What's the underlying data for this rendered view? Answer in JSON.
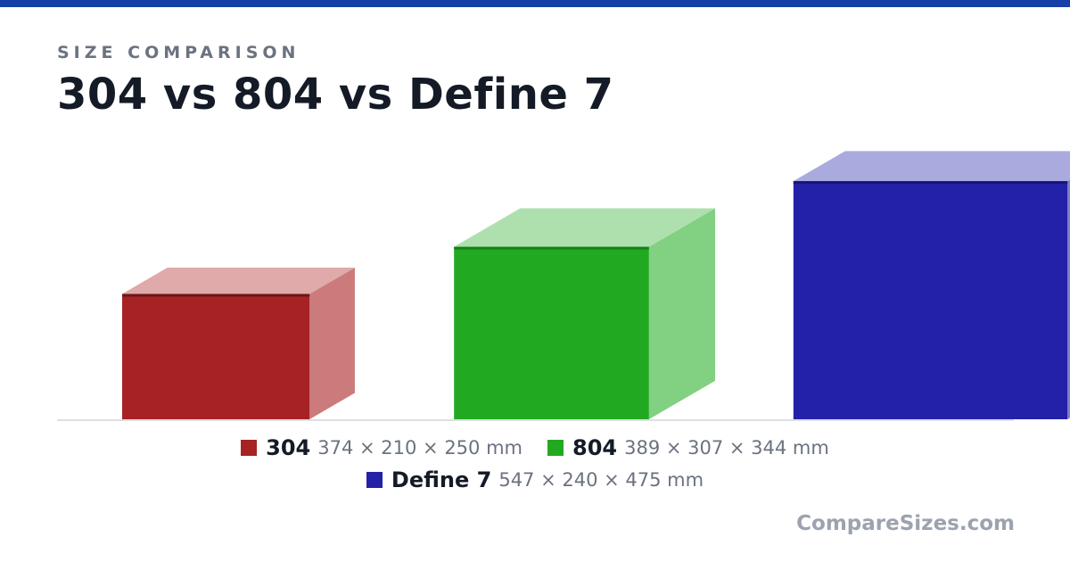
{
  "header": {
    "kicker": "SIZE COMPARISON",
    "title": "304 vs 804 vs Define 7"
  },
  "brand": "CompareSizes.com",
  "chart_data": {
    "type": "bar",
    "style": "3d-box",
    "categories": [
      "304",
      "804",
      "Define 7"
    ],
    "unit": "mm",
    "series": [
      {
        "label": "304",
        "width": 374,
        "depth": 210,
        "height": 250,
        "dims_text": "374 × 210 × 250 mm",
        "colors": {
          "front": "#a72224",
          "top": "#dfaaa9",
          "side": "#cb7b7b",
          "edge": "#6e1616"
        }
      },
      {
        "label": "804",
        "width": 389,
        "depth": 307,
        "height": 344,
        "dims_text": "389 × 307 × 344 mm",
        "colors": {
          "front": "#22a922",
          "top": "#aee0ae",
          "side": "#82d082",
          "edge": "#168016"
        }
      },
      {
        "label": "Define 7",
        "width": 547,
        "depth": 240,
        "height": 475,
        "dims_text": "547 × 240 × 475 mm",
        "colors": {
          "front": "#2421a9",
          "top": "#aaaadf",
          "side": "#8080cc",
          "edge": "#17157a"
        }
      }
    ],
    "legend_position": "bottom-center",
    "grid": false
  }
}
